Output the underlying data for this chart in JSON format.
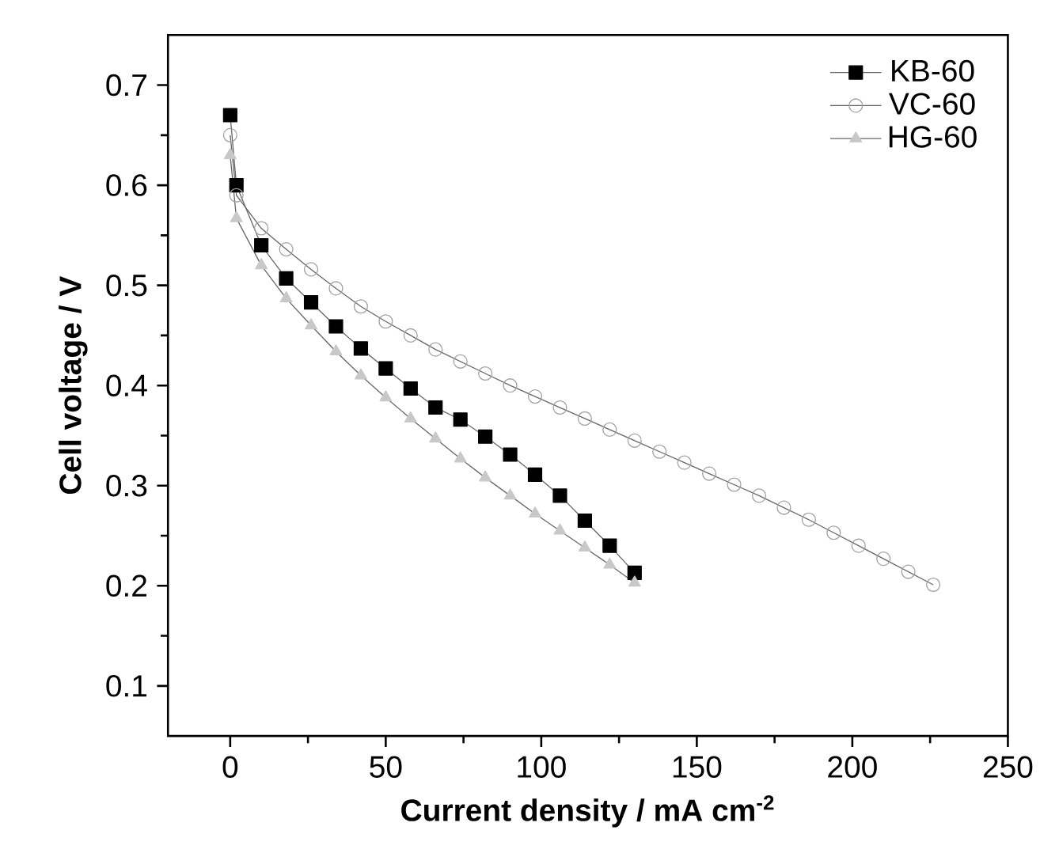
{
  "chart_data": {
    "type": "line",
    "xlabel": "Current density / mA cm$^{-2}$",
    "ylabel": "Cell voltage / V",
    "xlim": [
      -20,
      250
    ],
    "ylim": [
      0.05,
      0.75
    ],
    "xticks": [
      0,
      50,
      100,
      150,
      200,
      250
    ],
    "yticks": [
      0.1,
      0.2,
      0.3,
      0.4,
      0.5,
      0.6,
      0.7
    ],
    "grid": false,
    "legend": "top right",
    "series": [
      {
        "name": "KB-60",
        "color": "#000000",
        "marker": "square",
        "x": [
          0,
          2,
          10,
          18,
          26,
          34,
          42,
          50,
          58,
          66,
          74,
          82,
          90,
          98,
          106,
          114,
          122,
          130
        ],
        "values": [
          0.67,
          0.6,
          0.54,
          0.507,
          0.483,
          0.459,
          0.437,
          0.417,
          0.397,
          0.378,
          0.366,
          0.349,
          0.331,
          0.311,
          0.29,
          0.265,
          0.24,
          0.213
        ]
      },
      {
        "name": "VC-60",
        "color": "#a0a0a0",
        "marker": "circle",
        "x": [
          0,
          2,
          10,
          18,
          26,
          34,
          42,
          50,
          58,
          66,
          74,
          82,
          90,
          98,
          106,
          114,
          122,
          130,
          138,
          146,
          154,
          162,
          170,
          178,
          186,
          194,
          202,
          210,
          218,
          226
        ],
        "values": [
          0.65,
          0.59,
          0.557,
          0.536,
          0.516,
          0.497,
          0.479,
          0.464,
          0.45,
          0.436,
          0.424,
          0.412,
          0.4,
          0.389,
          0.378,
          0.367,
          0.356,
          0.345,
          0.334,
          0.323,
          0.312,
          0.301,
          0.29,
          0.278,
          0.266,
          0.253,
          0.24,
          0.227,
          0.214,
          0.201
        ]
      },
      {
        "name": "HG-60",
        "color": "#c8c8c8",
        "marker": "triangle",
        "x": [
          0,
          2,
          10,
          18,
          26,
          34,
          42,
          50,
          58,
          66,
          74,
          82,
          90,
          98,
          106,
          114,
          122,
          130
        ],
        "values": [
          0.63,
          0.567,
          0.52,
          0.487,
          0.46,
          0.434,
          0.41,
          0.388,
          0.367,
          0.347,
          0.327,
          0.308,
          0.29,
          0.272,
          0.255,
          0.238,
          0.221,
          0.203
        ]
      }
    ]
  }
}
